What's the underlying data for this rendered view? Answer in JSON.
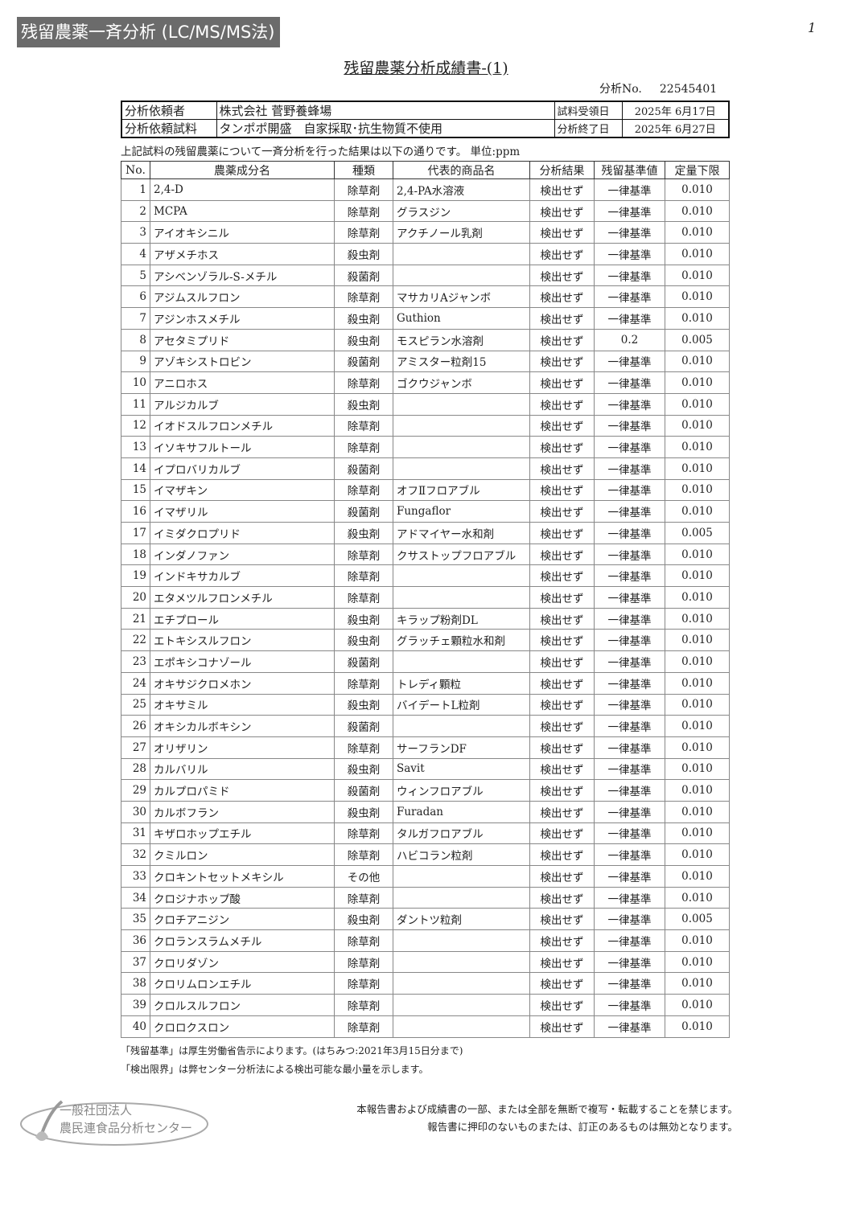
{
  "banner": "残留農薬一斉分析 (LC/MS/MS法)",
  "page_number": "1",
  "title": "残留農薬分析成績書-(1)",
  "analysis_no_label": "分析No.",
  "analysis_no": "22545401",
  "info": {
    "client_label": "分析依頼者",
    "client": "株式会社 菅野養蜂場",
    "received_label": "試料受領日",
    "received": "2025年 6月17日",
    "sample_label": "分析依頼試料",
    "sample": "タンポポ開盛　自家採取･抗生物質不使用",
    "finished_label": "分析終了日",
    "finished": "2025年 6月27日"
  },
  "intro": "上記試料の残留農薬について一斉分析を行った結果は以下の通りです。 単位:ppm",
  "table": {
    "headers": [
      "No.",
      "農薬成分名",
      "種類",
      "代表的商品名",
      "分析結果",
      "残留基準値",
      "定量下限"
    ],
    "rows": [
      [
        "1",
        "2,4-D",
        "除草剤",
        "2,4-PA水溶液",
        "検出せず",
        "一律基準",
        "0.010"
      ],
      [
        "2",
        "MCPA",
        "除草剤",
        "グラスジン",
        "検出せず",
        "一律基準",
        "0.010"
      ],
      [
        "3",
        "アイオキシニル",
        "除草剤",
        "アクチノール乳剤",
        "検出せず",
        "一律基準",
        "0.010"
      ],
      [
        "4",
        "アザメチホス",
        "殺虫剤",
        "",
        "検出せず",
        "一律基準",
        "0.010"
      ],
      [
        "5",
        "アシベンゾラル-S-メチル",
        "殺菌剤",
        "",
        "検出せず",
        "一律基準",
        "0.010"
      ],
      [
        "6",
        "アジムスルフロン",
        "除草剤",
        "マサカリAジャンボ",
        "検出せず",
        "一律基準",
        "0.010"
      ],
      [
        "7",
        "アジンホスメチル",
        "殺虫剤",
        "Guthion",
        "検出せず",
        "一律基準",
        "0.010"
      ],
      [
        "8",
        "アセタミプリド",
        "殺虫剤",
        "モスピラン水溶剤",
        "検出せず",
        "0.2",
        "0.005"
      ],
      [
        "9",
        "アゾキシストロビン",
        "殺菌剤",
        "アミスター粒剤15",
        "検出せず",
        "一律基準",
        "0.010"
      ],
      [
        "10",
        "アニロホス",
        "除草剤",
        "ゴクウジャンボ",
        "検出せず",
        "一律基準",
        "0.010"
      ],
      [
        "11",
        "アルジカルブ",
        "殺虫剤",
        "",
        "検出せず",
        "一律基準",
        "0.010"
      ],
      [
        "12",
        "イオドスルフロンメチル",
        "除草剤",
        "",
        "検出せず",
        "一律基準",
        "0.010"
      ],
      [
        "13",
        "イソキサフルトール",
        "除草剤",
        "",
        "検出せず",
        "一律基準",
        "0.010"
      ],
      [
        "14",
        "イプロバリカルブ",
        "殺菌剤",
        "",
        "検出せず",
        "一律基準",
        "0.010"
      ],
      [
        "15",
        "イマザキン",
        "除草剤",
        "オフⅡフロアブル",
        "検出せず",
        "一律基準",
        "0.010"
      ],
      [
        "16",
        "イマザリル",
        "殺菌剤",
        "Fungaflor",
        "検出せず",
        "一律基準",
        "0.010"
      ],
      [
        "17",
        "イミダクロプリド",
        "殺虫剤",
        "アドマイヤー水和剤",
        "検出せず",
        "一律基準",
        "0.005"
      ],
      [
        "18",
        "インダノファン",
        "除草剤",
        "クサストップフロアブル",
        "検出せず",
        "一律基準",
        "0.010"
      ],
      [
        "19",
        "インドキサカルブ",
        "除草剤",
        "",
        "検出せず",
        "一律基準",
        "0.010"
      ],
      [
        "20",
        "エタメツルフロンメチル",
        "除草剤",
        "",
        "検出せず",
        "一律基準",
        "0.010"
      ],
      [
        "21",
        "エチプロール",
        "殺虫剤",
        "キラップ粉剤DL",
        "検出せず",
        "一律基準",
        "0.010"
      ],
      [
        "22",
        "エトキシスルフロン",
        "殺虫剤",
        "グラッチェ顆粒水和剤",
        "検出せず",
        "一律基準",
        "0.010"
      ],
      [
        "23",
        "エポキシコナゾール",
        "殺菌剤",
        "",
        "検出せず",
        "一律基準",
        "0.010"
      ],
      [
        "24",
        "オキサジクロメホン",
        "除草剤",
        "トレディ顆粒",
        "検出せず",
        "一律基準",
        "0.010"
      ],
      [
        "25",
        "オキサミル",
        "殺虫剤",
        "バイデートL粒剤",
        "検出せず",
        "一律基準",
        "0.010"
      ],
      [
        "26",
        "オキシカルボキシン",
        "殺菌剤",
        "",
        "検出せず",
        "一律基準",
        "0.010"
      ],
      [
        "27",
        "オリザリン",
        "除草剤",
        "サーフランDF",
        "検出せず",
        "一律基準",
        "0.010"
      ],
      [
        "28",
        "カルバリル",
        "殺虫剤",
        "Savit",
        "検出せず",
        "一律基準",
        "0.010"
      ],
      [
        "29",
        "カルプロパミド",
        "殺菌剤",
        "ウィンフロアブル",
        "検出せず",
        "一律基準",
        "0.010"
      ],
      [
        "30",
        "カルボフラン",
        "殺虫剤",
        "Furadan",
        "検出せず",
        "一律基準",
        "0.010"
      ],
      [
        "31",
        "キザロホップエチル",
        "除草剤",
        "タルガフロアブル",
        "検出せず",
        "一律基準",
        "0.010"
      ],
      [
        "32",
        "クミルロン",
        "除草剤",
        "ハビコラン粒剤",
        "検出せず",
        "一律基準",
        "0.010"
      ],
      [
        "33",
        "クロキントセットメキシル",
        "その他",
        "",
        "検出せず",
        "一律基準",
        "0.010"
      ],
      [
        "34",
        "クロジナホップ酸",
        "除草剤",
        "",
        "検出せず",
        "一律基準",
        "0.010"
      ],
      [
        "35",
        "クロチアニジン",
        "殺虫剤",
        "ダントツ粒剤",
        "検出せず",
        "一律基準",
        "0.005"
      ],
      [
        "36",
        "クロランスラムメチル",
        "除草剤",
        "",
        "検出せず",
        "一律基準",
        "0.010"
      ],
      [
        "37",
        "クロリダゾン",
        "除草剤",
        "",
        "検出せず",
        "一律基準",
        "0.010"
      ],
      [
        "38",
        "クロリムロンエチル",
        "除草剤",
        "",
        "検出せず",
        "一律基準",
        "0.010"
      ],
      [
        "39",
        "クロルスルフロン",
        "除草剤",
        "",
        "検出せず",
        "一律基準",
        "0.010"
      ],
      [
        "40",
        "クロロクスロン",
        "除草剤",
        "",
        "検出せず",
        "一律基準",
        "0.010"
      ]
    ]
  },
  "footnotes": [
    "「残留基準」は厚生労働省告示によります。(はちみつ:2021年3月15日分まで)",
    "「検出限界」は弊センター分析法による検出可能な最小量を示します。"
  ],
  "logo": {
    "line1": "一般社団法人",
    "line2": "農民連食品分析センター"
  },
  "disclaimer": [
    "本報告書および成績書の一部、または全部を無断で複写・転載することを禁じます。",
    "報告書に押印のないものまたは、訂正のあるものは無効となります。"
  ]
}
